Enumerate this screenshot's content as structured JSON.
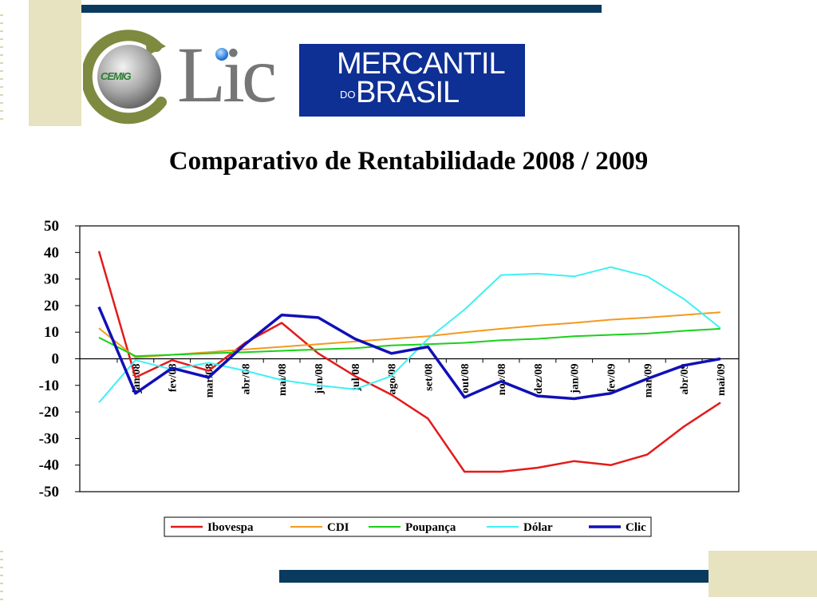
{
  "title": "Comparativo de Rentabilidade 2008 / 2009",
  "logos": {
    "clic_word": "Lic",
    "cemig_word": "CEMIG",
    "mercantil_line1": "MERCANTIL",
    "mercantil_do": "DO",
    "mercantil_line2": "BRASIL"
  },
  "colors": {
    "accent_bar": "#0a3a5e",
    "accent_block": "#e7e2bf",
    "mercantil_bg": "#0e2f93"
  },
  "chart_data": {
    "type": "line",
    "categories": [
      "",
      "jan/08",
      "fev/08",
      "mar/08",
      "abr/08",
      "mai/08",
      "jun/08",
      "jul/08",
      "ago/08",
      "set/08",
      "out/08",
      "nov/08",
      "dez/08",
      "jan/09",
      "fev/09",
      "mar/09",
      "abr/09",
      "mai/09"
    ],
    "ylim": [
      -50,
      50
    ],
    "yticks": [
      50,
      40,
      30,
      20,
      10,
      0,
      -10,
      -20,
      -30,
      -40,
      -50
    ],
    "grid": false,
    "legend_position": "bottom",
    "series": [
      {
        "name": "Ibovespa",
        "color": "#e31b1b",
        "width": 2.5,
        "values": [
          40.5,
          -7,
          -0.5,
          -4.5,
          6,
          13.5,
          2,
          -6.5,
          -13.5,
          -22.5,
          -42.5,
          -42.5,
          -41,
          -38.5,
          -40,
          -36,
          -25.5,
          -16.5
        ]
      },
      {
        "name": "CDI",
        "color": "#f39a1e",
        "width": 2,
        "values": [
          11.5,
          0.5,
          1.5,
          2.5,
          3.5,
          4.5,
          5.5,
          6.5,
          7.5,
          8.5,
          10,
          11.3,
          12.5,
          13.5,
          14.7,
          15.5,
          16.5,
          17.5
        ]
      },
      {
        "name": "Poupança",
        "color": "#1ad01a",
        "width": 2,
        "values": [
          8,
          1,
          1.5,
          2,
          2.5,
          3,
          3.5,
          4,
          5,
          5.5,
          6,
          7,
          7.5,
          8.5,
          9,
          9.5,
          10.5,
          11.3
        ]
      },
      {
        "name": "Dólar",
        "color": "#3ff0f4",
        "width": 2,
        "values": [
          -16.5,
          -0.5,
          -4,
          -1.5,
          -4.5,
          -8,
          -10,
          -11.5,
          -6.5,
          7.5,
          18.5,
          31.5,
          32,
          31,
          34.5,
          31,
          22.5,
          11.5
        ]
      },
      {
        "name": "Clic",
        "color": "#1010b8",
        "width": 3.5,
        "values": [
          19.5,
          -13,
          -3.5,
          -7,
          5.5,
          16.5,
          15.5,
          7.5,
          2,
          4.5,
          -14.5,
          -8.5,
          -14,
          -15,
          -13,
          -7.5,
          -2.5,
          0
        ]
      }
    ]
  }
}
